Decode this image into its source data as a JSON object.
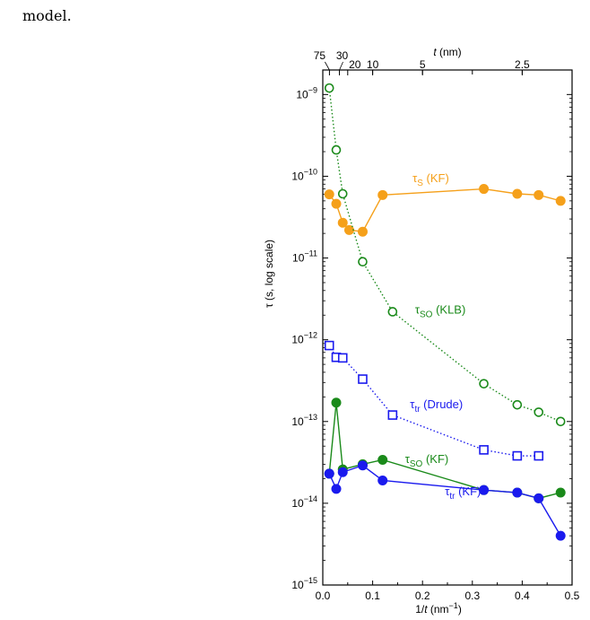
{
  "lead_text": "model.",
  "chart_data": {
    "type": "scatter",
    "xlabel_base": "1/",
    "xlabel_var": "t",
    "xlabel_unit": " (nm",
    "xlabel_exp": "−1",
    "xlabel_close": ")",
    "top_xlabel_var": "t",
    "top_xlabel_unit": " (nm)",
    "ylabel": "τ (s, log scale)",
    "xlim": [
      0.0,
      0.5
    ],
    "ylim_log10": [
      -15,
      -8.7
    ],
    "log_y": true,
    "x_ticks": [
      0.0,
      0.1,
      0.2,
      0.3,
      0.4,
      0.5
    ],
    "x_tick_labels": [
      "0.0",
      "0.1",
      "0.2",
      "0.3",
      "0.4",
      "0.5"
    ],
    "y_ticks_exp": [
      -15,
      -14,
      -13,
      -12,
      -11,
      -10,
      -9
    ],
    "y_tick_base": "10",
    "top_ticks": [
      {
        "t": 75,
        "label": "75"
      },
      {
        "t": 30,
        "label": "30"
      },
      {
        "t": 20,
        "label": "20"
      },
      {
        "t": 10,
        "label": "10"
      },
      {
        "t": 5,
        "label": "5"
      },
      {
        "t": 2.5,
        "label": "2.5"
      }
    ],
    "series": [
      {
        "name": "τS (KF)",
        "sym": "τ",
        "sub": "S",
        "suffix": " (KF)",
        "color": "#f5a01a",
        "marker": "filled-circle",
        "line": "solid",
        "x": [
          0.013,
          0.027,
          0.04,
          0.053,
          0.08,
          0.12,
          0.323,
          0.39,
          0.433,
          0.477
        ],
        "y": [
          6e-11,
          4.6e-11,
          2.7e-11,
          2.2e-11,
          2.1e-11,
          5.9e-11,
          7e-11,
          6.1e-11,
          5.9e-11,
          5e-11
        ],
        "label_at": [
          0.18,
          8.5e-11
        ]
      },
      {
        "name": "τSO (KLB)",
        "sym": "τ",
        "sub": "SO",
        "suffix": " (KLB)",
        "color": "#1a8a1a",
        "marker": "open-circle",
        "line": "dotted",
        "x": [
          0.013,
          0.027,
          0.04,
          0.08,
          0.14,
          0.323,
          0.39,
          0.433,
          0.477
        ],
        "y": [
          1.2e-09,
          2.1e-10,
          6.1e-11,
          9e-12,
          2.2e-12,
          2.9e-13,
          1.6e-13,
          1.3e-13,
          1e-13
        ],
        "label_at": [
          0.185,
          2.1e-12
        ]
      },
      {
        "name": "τtr (Drude)",
        "sym": "τ",
        "sub": "tr",
        "suffix": " (Drude)",
        "color": "#1a1aee",
        "marker": "open-square",
        "line": "dotted",
        "x": [
          0.013,
          0.027,
          0.04,
          0.08,
          0.14,
          0.323,
          0.39,
          0.433
        ],
        "y": [
          8.5e-13,
          6.1e-13,
          6e-13,
          3.3e-13,
          1.2e-13,
          4.5e-14,
          3.8e-14,
          3.8e-14
        ],
        "label_at": [
          0.175,
          1.45e-13
        ]
      },
      {
        "name": "τSO (KF)",
        "sym": "τ",
        "sub": "SO",
        "suffix": " (KF)",
        "color": "#1a8a1a",
        "marker": "filled-circle",
        "line": "solid",
        "x": [
          0.013,
          0.027,
          0.04,
          0.08,
          0.12,
          0.323,
          0.39,
          0.433,
          0.477
        ],
        "y": [
          2.3e-14,
          1.7e-13,
          2.6e-14,
          3e-14,
          3.4e-14,
          1.45e-14,
          1.35e-14,
          1.15e-14,
          1.35e-14
        ],
        "label_at": [
          0.165,
          3.1e-14
        ]
      },
      {
        "name": "τtr (KF)",
        "sym": "τ",
        "sub": "tr",
        "suffix": " (KF)",
        "color": "#1a1aee",
        "marker": "filled-circle",
        "line": "solid",
        "x": [
          0.013,
          0.027,
          0.04,
          0.08,
          0.12,
          0.323,
          0.39,
          0.433,
          0.477
        ],
        "y": [
          2.3e-14,
          1.5e-14,
          2.4e-14,
          2.9e-14,
          1.9e-14,
          1.45e-14,
          1.35e-14,
          1.15e-14,
          4e-15
        ],
        "label_at": [
          0.245,
          1.25e-14
        ]
      }
    ]
  }
}
